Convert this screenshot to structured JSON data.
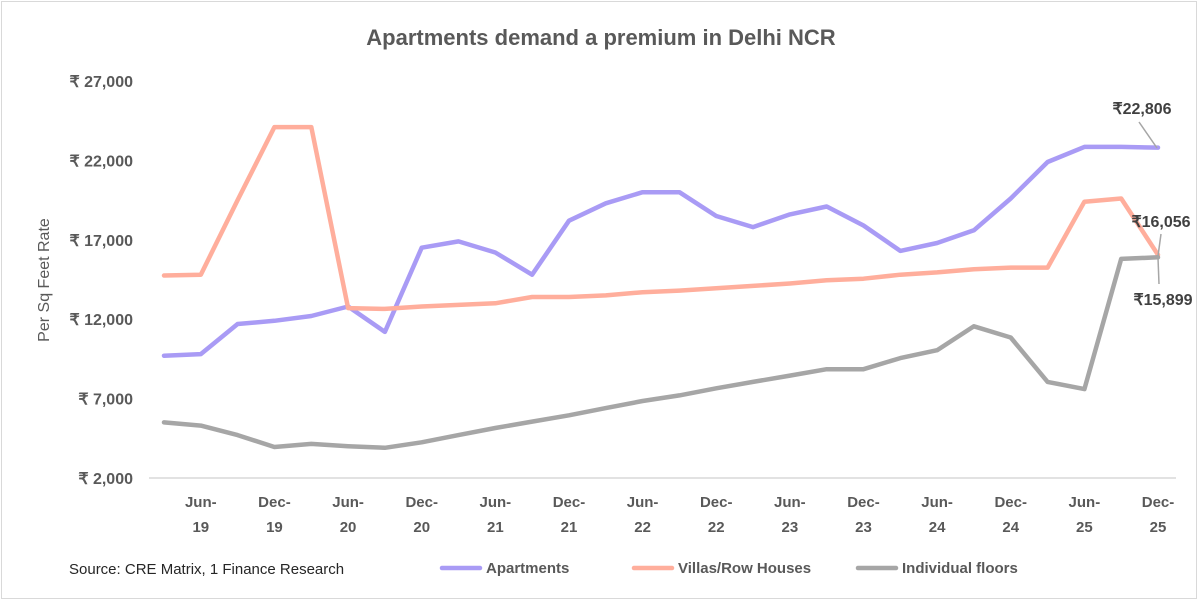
{
  "chart_data": {
    "type": "line",
    "title": "Apartments demand a premium in Delhi NCR",
    "ylabel": "Per Sq Feet Rate",
    "xlabel": "",
    "ylim": [
      2000,
      27000
    ],
    "yticks": [
      2000,
      7000,
      12000,
      17000,
      22000,
      27000
    ],
    "ytick_labels": [
      "₹ 2,000",
      "₹ 7,000",
      "₹ 12,000",
      "₹ 17,000",
      "₹ 22,000",
      "₹ 27,000"
    ],
    "x": [
      "Mar-19",
      "Jun-19",
      "Sep-19",
      "Dec-19",
      "Mar-20",
      "Jun-20",
      "Sep-20",
      "Dec-20",
      "Mar-21",
      "Jun-21",
      "Sep-21",
      "Dec-21",
      "Mar-22",
      "Jun-22",
      "Sep-22",
      "Dec-22",
      "Mar-23",
      "Jun-23",
      "Sep-23",
      "Dec-23",
      "Mar-24",
      "Jun-24",
      "Sep-24",
      "Dec-24",
      "Mar-25",
      "Jun-25",
      "Sep-25",
      "Dec-25"
    ],
    "xtick_labels": [
      {
        "index": 1,
        "top": "Jun-",
        "bottom": "19"
      },
      {
        "index": 3,
        "top": "Dec-",
        "bottom": "19"
      },
      {
        "index": 5,
        "top": "Jun-",
        "bottom": "20"
      },
      {
        "index": 7,
        "top": "Dec-",
        "bottom": "20"
      },
      {
        "index": 9,
        "top": "Jun-",
        "bottom": "21"
      },
      {
        "index": 11,
        "top": "Dec-",
        "bottom": "21"
      },
      {
        "index": 13,
        "top": "Jun-",
        "bottom": "22"
      },
      {
        "index": 15,
        "top": "Dec-",
        "bottom": "22"
      },
      {
        "index": 17,
        "top": "Jun-",
        "bottom": "23"
      },
      {
        "index": 19,
        "top": "Dec-",
        "bottom": "23"
      },
      {
        "index": 21,
        "top": "Jun-",
        "bottom": "24"
      },
      {
        "index": 23,
        "top": "Dec-",
        "bottom": "24"
      },
      {
        "index": 25,
        "top": "Jun-",
        "bottom": "25"
      },
      {
        "index": 27,
        "top": "Dec-",
        "bottom": "25"
      }
    ],
    "series": [
      {
        "name": "Apartments",
        "color": "#a99bf5",
        "values": [
          9700,
          9800,
          11700,
          11900,
          12200,
          12800,
          11200,
          16500,
          16900,
          16200,
          14800,
          18200,
          19300,
          20000,
          20000,
          18500,
          17800,
          18600,
          19100,
          17900,
          16300,
          16800,
          17600,
          19600,
          21900,
          22850,
          22850,
          22806
        ]
      },
      {
        "name": "Villas/Row Houses",
        "color": "#ffae9c",
        "values": [
          14750,
          14800,
          19500,
          24100,
          24100,
          12700,
          12650,
          12800,
          12900,
          13000,
          13400,
          13400,
          13500,
          13700,
          13800,
          13950,
          14100,
          14250,
          14450,
          14550,
          14800,
          14950,
          15150,
          15250,
          15250,
          19400,
          19600,
          16056
        ]
      },
      {
        "name": "Individual floors",
        "color": "#a6a6a6",
        "values": [
          5500,
          5300,
          4700,
          3950,
          4150,
          4000,
          3900,
          4250,
          4700,
          5150,
          5550,
          5950,
          6400,
          6850,
          7200,
          7650,
          8050,
          8450,
          8850,
          8850,
          9550,
          10050,
          11550,
          10850,
          8050,
          7600,
          15800,
          15899
        ]
      }
    ],
    "annotations": [
      "₹22,806",
      "₹16,056",
      "₹15,899"
    ],
    "legend_placement": "bottom",
    "grid": false,
    "source": "Source: CRE Matrix, 1 Finance Research"
  }
}
